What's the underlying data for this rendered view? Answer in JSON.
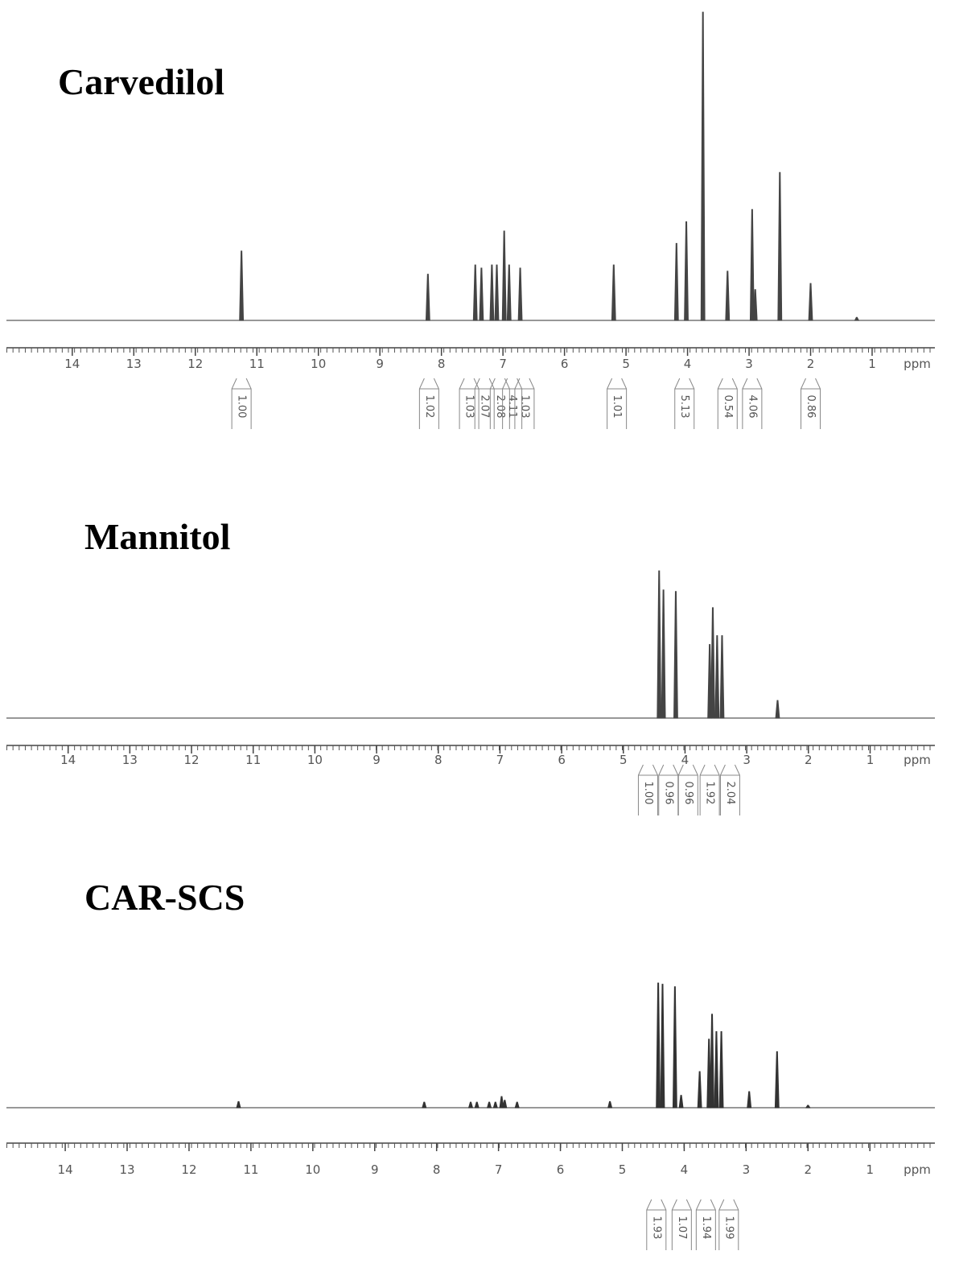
{
  "chart_data": [
    {
      "type": "nmr",
      "title": "Carvedilol",
      "xlabel": "ppm",
      "color": "#444444",
      "xlim": [
        15.07,
        -0.02
      ],
      "xticks": [
        14,
        13,
        12,
        11,
        10,
        9,
        8,
        7,
        6,
        5,
        4,
        3,
        2,
        1
      ],
      "x": [
        11.25,
        8.22,
        7.45,
        7.35,
        7.18,
        7.1,
        6.98,
        6.9,
        6.72,
        5.2,
        4.18,
        4.02,
        3.75,
        3.35,
        2.95,
        2.9,
        2.5,
        2.0,
        1.25
      ],
      "values": [
        22.5,
        15,
        18,
        17,
        18,
        18,
        29,
        18,
        17,
        18,
        25,
        32,
        100,
        16,
        36,
        10,
        48,
        12,
        1
      ],
      "integrals": [
        {
          "value": 1,
          "label": "1.00"
        },
        {
          "value": 1.02,
          "label": "1.02"
        },
        {
          "value": 1.03,
          "label": "1.03"
        },
        {
          "value": 2.07,
          "label": "2.07"
        },
        {
          "value": 2.08,
          "label": "2.08"
        },
        {
          "value": 4.11,
          "label": "4.11"
        },
        {
          "value": 1.03,
          "label": "1.03"
        },
        {
          "value": 1.01,
          "label": "1.01"
        },
        {
          "value": 5.13,
          "label": "5.13"
        },
        0.54,
        {
          "value": 4.06,
          "label": "4.06"
        },
        0.86
      ],
      "integral_x": [
        11.25,
        8.2,
        7.55,
        7.3,
        7.05,
        6.85,
        6.65,
        5.15,
        4.05,
        3.35,
        2.95,
        2.0
      ]
    },
    {
      "type": "nmr",
      "title": "Mannitol",
      "xlabel": "ppm",
      "color": "#444444",
      "xlim": [
        15.0,
        -0.05
      ],
      "xticks": [
        14,
        13,
        12,
        11,
        10,
        9,
        8,
        7,
        6,
        5,
        4,
        3,
        2,
        1
      ],
      "x": [
        4.42,
        4.35,
        4.15,
        3.6,
        3.55,
        3.48,
        3.4,
        2.5
      ],
      "values": [
        100,
        87,
        86,
        50,
        75,
        56,
        56,
        12
      ],
      "integrals": [
        {
          "value": 1,
          "label": "1.00"
        },
        0.96,
        0.96,
        1.92,
        2.04
      ],
      "integral_x": [
        4.6,
        4.27,
        3.95,
        3.6,
        3.27
      ]
    },
    {
      "type": "nmr",
      "title": "CAR-SCS",
      "xlabel": "ppm",
      "color": "#333333",
      "xlim": [
        14.95,
        -0.05
      ],
      "xticks": [
        14,
        13,
        12,
        11,
        10,
        9,
        8,
        7,
        6,
        5,
        4,
        3,
        2,
        1
      ],
      "x": [
        11.2,
        8.2,
        7.45,
        7.35,
        7.15,
        7.05,
        6.95,
        6.9,
        6.7,
        5.2,
        4.42,
        4.35,
        4.15,
        4.05,
        3.75,
        3.6,
        3.55,
        3.48,
        3.4,
        2.95,
        2.5,
        2.0
      ],
      "values": [
        5,
        4.5,
        4.5,
        4.5,
        4.5,
        4.5,
        9,
        6,
        4.5,
        5,
        100,
        99,
        97,
        10,
        29,
        55,
        75,
        61,
        61,
        13,
        45,
        2
      ],
      "integrals": [
        1.93,
        1.07,
        1.94,
        1.99
      ],
      "integral_x": [
        4.45,
        4.04,
        3.65,
        3.28
      ]
    }
  ]
}
